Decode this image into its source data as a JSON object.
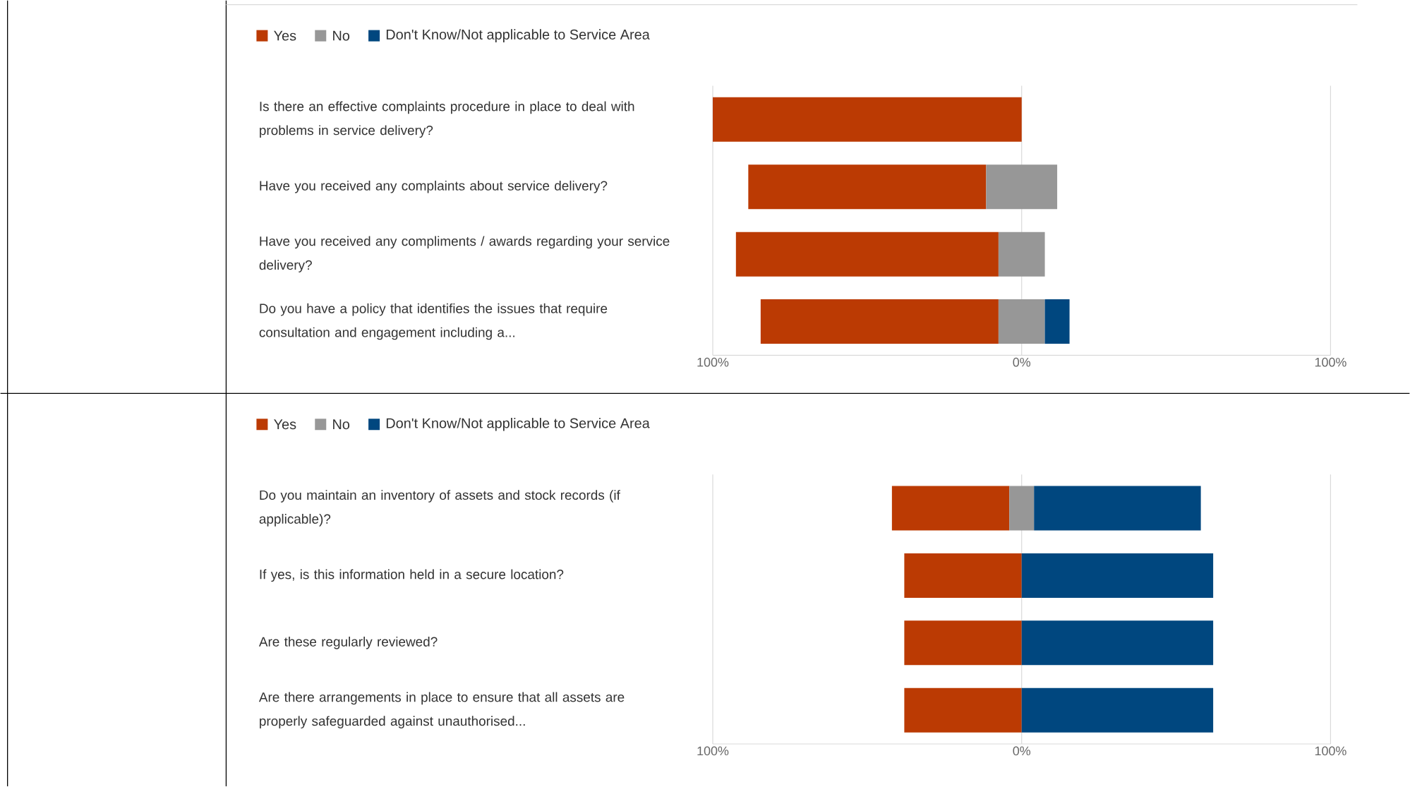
{
  "chart_data": [
    {
      "type": "bar",
      "orientation": "horizontal",
      "legend": "top left",
      "grid": "x",
      "categories": [
        "Is there an effective complaints procedure in place to deal with problems in service delivery?",
        "Have you received any complaints about service delivery?",
        "Have you received any compliments / awards regarding your service delivery?",
        "Do you have a policy that identifies the issues that require consultation and engagement including a..."
      ],
      "series": [
        {
          "name": "Yes",
          "color": "#bb3a03",
          "values": [
            100,
            77,
            85,
            77
          ],
          "base": [
            -100,
            -88.5,
            -92.5,
            -84.5
          ]
        },
        {
          "name": "No",
          "color": "#979797",
          "values": [
            null,
            23,
            15,
            15
          ],
          "base": [
            null,
            -11.5,
            -7.5,
            -7.5
          ]
        },
        {
          "name": "Don't Know/Not applicable to Service Area",
          "color": "#00477f",
          "values": [
            null,
            null,
            null,
            8
          ],
          "base": [
            null,
            null,
            null,
            7.5
          ]
        }
      ],
      "xlim": [
        -100,
        100
      ],
      "xticks": [
        {
          "value": -100,
          "label": "100%"
        },
        {
          "value": 0,
          "label": "0%"
        },
        {
          "value": 100,
          "label": "100%"
        }
      ]
    },
    {
      "type": "bar",
      "orientation": "horizontal",
      "legend": "top left",
      "grid": "x",
      "categories": [
        "Do you maintain an inventory of assets and stock records (if applicable)?",
        "If yes, is this information held in a secure location?",
        "Are these regularly reviewed?",
        "Are there arrangements in place to ensure that all assets are properly safeguarded against unauthorised..."
      ],
      "series": [
        {
          "name": "Yes",
          "color": "#bb3a03",
          "values": [
            38,
            38,
            38,
            38
          ],
          "base": [
            -42,
            -38,
            -38,
            -38
          ]
        },
        {
          "name": "No",
          "color": "#979797",
          "values": [
            8,
            null,
            null,
            null
          ],
          "base": [
            -4,
            null,
            null,
            null
          ]
        },
        {
          "name": "Don't Know/Not applicable to Service Area",
          "color": "#00477f",
          "values": [
            54,
            62,
            62,
            62
          ],
          "base": [
            4,
            0,
            0,
            0
          ]
        }
      ],
      "xlim": [
        -100,
        100
      ],
      "xticks": [
        {
          "value": -100,
          "label": "100%"
        },
        {
          "value": 0,
          "label": "0%"
        },
        {
          "value": 100,
          "label": "100%"
        }
      ]
    }
  ]
}
